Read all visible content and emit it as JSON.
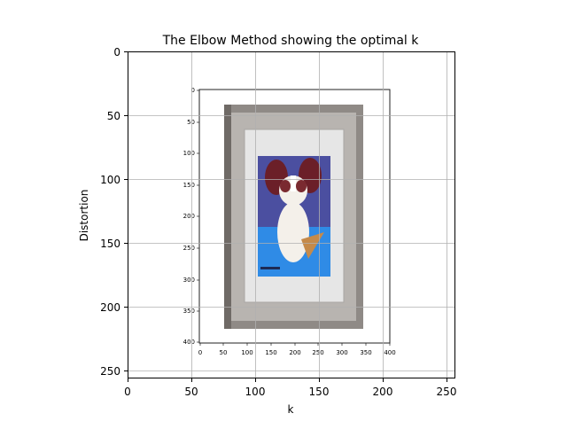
{
  "chart_data": {
    "type": "image",
    "title": "The Elbow Method showing the optimal k",
    "xlabel": "k",
    "ylabel": "Distortion",
    "xlim": [
      0,
      256
    ],
    "ylim": [
      256,
      0
    ],
    "y_axis_inverted": true,
    "grid": true,
    "x_ticks": [
      "0",
      "50",
      "100",
      "150",
      "200",
      "250"
    ],
    "y_ticks": [
      "0",
      "50",
      "100",
      "150",
      "200",
      "250"
    ],
    "embedded_image": {
      "description": "Screenshot of a matplotlib plot showing a framed painting of a papillon dog",
      "x_ticks": [
        "0",
        "50",
        "100",
        "150",
        "200",
        "250",
        "300",
        "350",
        "400"
      ],
      "y_ticks": [
        "0",
        "50",
        "100",
        "150",
        "200",
        "250",
        "300",
        "350",
        "400"
      ]
    }
  },
  "colors": {
    "frame_outer": "#8f8a86",
    "frame_inner": "#b8b4b0",
    "mat": "#e6e6e6",
    "painting_top": "#4b4fa0",
    "painting_bottom": "#2f8be6",
    "dog_ear": "#6b1f28",
    "dog_body": "#f4f0ea",
    "toy": "#c58a4a"
  }
}
